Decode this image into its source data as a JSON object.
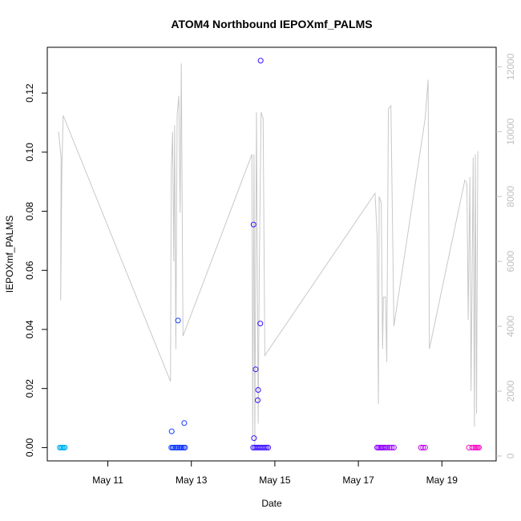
{
  "chart_data": {
    "type": "scatter",
    "title": "ATOM4 Northbound IEPOXmf_PALMS",
    "xlabel": "Date",
    "ylabel": "IEPOXmf_PALMS",
    "x_ticks": [
      "May 11",
      "May 13",
      "May 15",
      "May 17",
      "May 19"
    ],
    "y_ticks": [
      "0.00",
      "0.02",
      "0.04",
      "0.06",
      "0.08",
      "0.10",
      "0.12"
    ],
    "y2_ticks": [
      "0",
      "2000",
      "4000",
      "6000",
      "8000",
      "10000",
      "12000"
    ],
    "xlim": [
      9.55,
      20.3
    ],
    "ylim": [
      -0.0045,
      0.1355
    ],
    "y2lim": [
      -150,
      12600
    ],
    "grid": false,
    "colors": {
      "point_early": "#00b4f0",
      "point_mid": "#1a1aff",
      "point_late": "#9000ff",
      "point_end": "#ff10c8",
      "secondary_line": "#c8c8c8"
    },
    "series": [
      {
        "axis": "left",
        "style": "points",
        "points": [
          [
            9.85,
            0.0
          ],
          [
            9.88,
            0.0
          ],
          [
            9.91,
            0.0
          ],
          [
            9.94,
            0.0
          ],
          [
            9.97,
            0.0
          ],
          [
            12.52,
            0.0
          ],
          [
            12.55,
            0.0
          ],
          [
            12.58,
            0.0
          ],
          [
            12.62,
            0.0
          ],
          [
            12.65,
            0.0
          ],
          [
            12.68,
            0.0
          ],
          [
            12.72,
            0.0
          ],
          [
            12.75,
            0.0
          ],
          [
            12.78,
            0.0
          ],
          [
            12.82,
            0.0
          ],
          [
            12.85,
            0.0
          ],
          [
            12.53,
            0.0055
          ],
          [
            12.68,
            0.043
          ],
          [
            12.83,
            0.0083
          ],
          [
            14.48,
            0.0
          ],
          [
            14.52,
            0.0
          ],
          [
            14.56,
            0.0
          ],
          [
            14.6,
            0.0
          ],
          [
            14.64,
            0.0
          ],
          [
            14.68,
            0.0
          ],
          [
            14.72,
            0.0
          ],
          [
            14.76,
            0.0
          ],
          [
            14.8,
            0.0
          ],
          [
            14.84,
            0.0
          ],
          [
            14.5,
            0.0032
          ],
          [
            14.49,
            0.0755
          ],
          [
            14.54,
            0.0265
          ],
          [
            14.6,
            0.0195
          ],
          [
            14.59,
            0.016
          ],
          [
            14.65,
            0.042
          ],
          [
            14.66,
            0.131
          ],
          [
            17.45,
            0.0
          ],
          [
            17.48,
            0.0
          ],
          [
            17.52,
            0.0
          ],
          [
            17.55,
            0.0
          ],
          [
            17.58,
            0.0
          ],
          [
            17.62,
            0.0
          ],
          [
            17.66,
            0.0
          ],
          [
            17.7,
            0.0
          ],
          [
            17.75,
            0.0
          ],
          [
            17.8,
            0.0
          ],
          [
            17.85,
            0.0
          ],
          [
            18.5,
            0.0
          ],
          [
            18.55,
            0.0
          ],
          [
            18.6,
            0.0
          ],
          [
            19.65,
            0.0
          ],
          [
            19.72,
            0.0
          ],
          [
            19.76,
            0.0
          ],
          [
            19.8,
            0.0
          ],
          [
            19.83,
            0.0
          ],
          [
            19.86,
            0.0
          ],
          [
            19.89,
            0.0
          ]
        ]
      },
      {
        "axis": "right",
        "style": "line",
        "points": [
          [
            9.82,
            10000
          ],
          [
            9.88,
            9200
          ],
          [
            9.87,
            4800
          ],
          [
            9.9,
            8800
          ],
          [
            9.93,
            10500
          ],
          [
            12.5,
            2300
          ],
          [
            12.52,
            8800
          ],
          [
            12.55,
            10000
          ],
          [
            12.58,
            6000
          ],
          [
            12.6,
            10200
          ],
          [
            12.63,
            3300
          ],
          [
            12.66,
            10500
          ],
          [
            12.7,
            11100
          ],
          [
            12.73,
            7500
          ],
          [
            12.76,
            12100
          ],
          [
            12.8,
            3700
          ],
          [
            14.45,
            9300
          ],
          [
            14.47,
            600
          ],
          [
            14.5,
            9300
          ],
          [
            14.52,
            300
          ],
          [
            14.56,
            10600
          ],
          [
            14.6,
            1000
          ],
          [
            14.63,
            6000
          ],
          [
            14.67,
            10600
          ],
          [
            14.72,
            10400
          ],
          [
            14.76,
            3100
          ],
          [
            17.4,
            8100
          ],
          [
            17.45,
            6800
          ],
          [
            17.48,
            1600
          ],
          [
            17.5,
            8000
          ],
          [
            17.55,
            7800
          ],
          [
            17.58,
            3300
          ],
          [
            17.6,
            4900
          ],
          [
            17.65,
            4900
          ],
          [
            17.68,
            2900
          ],
          [
            17.72,
            10700
          ],
          [
            17.78,
            10800
          ],
          [
            17.85,
            4000
          ],
          [
            18.6,
            10400
          ],
          [
            18.67,
            11600
          ],
          [
            18.7,
            3300
          ],
          [
            19.55,
            8500
          ],
          [
            19.6,
            8400
          ],
          [
            19.63,
            4200
          ],
          [
            19.67,
            8600
          ],
          [
            19.7,
            2000
          ],
          [
            19.75,
            9200
          ],
          [
            19.78,
            900
          ],
          [
            19.8,
            9300
          ],
          [
            19.83,
            1300
          ],
          [
            19.86,
            9400
          ]
        ]
      }
    ]
  }
}
